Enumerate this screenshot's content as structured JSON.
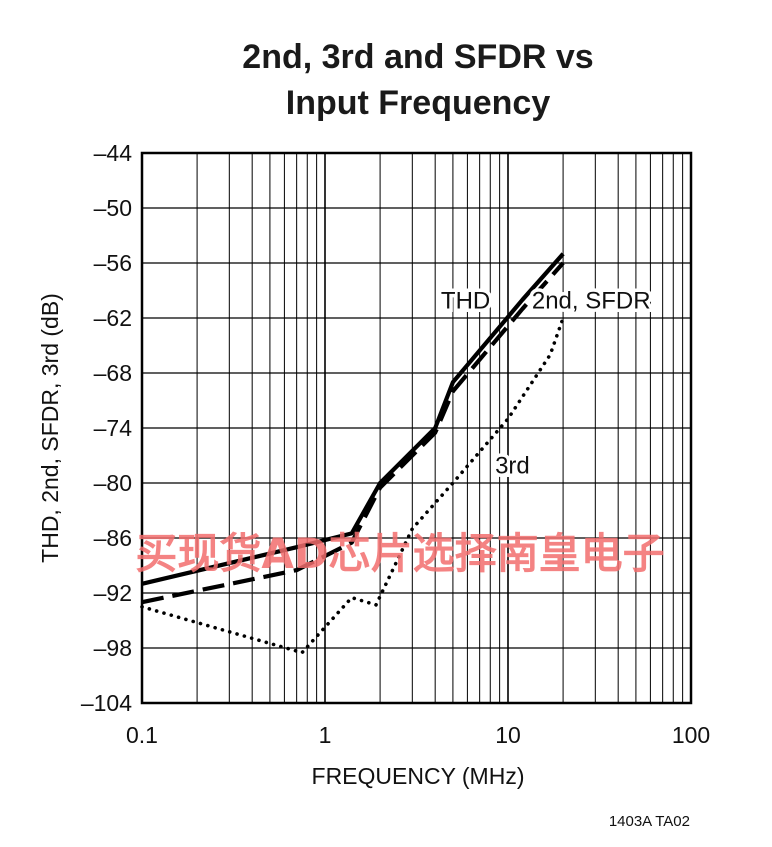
{
  "chart_data": {
    "type": "line",
    "title_lines": [
      "2nd, 3rd and SFDR vs",
      "Input Frequency"
    ],
    "xlabel": "FREQUENCY (MHz)",
    "ylabel": "THD, 2nd, SFDR, 3rd (dB)",
    "x_scale": "log",
    "xlim": [
      0.1,
      100
    ],
    "ylim": [
      -104,
      -44
    ],
    "x_ticks": [
      0.1,
      1,
      10,
      100
    ],
    "x_tick_labels": [
      "0.1",
      "1",
      "10",
      "100"
    ],
    "y_ticks": [
      -44,
      -50,
      -56,
      -62,
      -68,
      -74,
      -80,
      -86,
      -92,
      -98,
      -104
    ],
    "y_tick_labels": [
      "–44",
      "–50",
      "–56",
      "–62",
      "–68",
      "–74",
      "–80",
      "–86",
      "–92",
      "–98",
      "–104"
    ],
    "grid": true,
    "series": [
      {
        "name": "THD",
        "style": "solid",
        "x": [
          0.1,
          0.7,
          1.4,
          2,
          4,
          5,
          12,
          20
        ],
        "y": [
          -91,
          -87,
          -85.5,
          -80,
          -74,
          -69,
          -60,
          -55
        ]
      },
      {
        "name": "2nd, SFDR",
        "style": "dashed",
        "x": [
          0.1,
          0.7,
          1.4,
          2,
          4,
          5,
          12,
          20
        ],
        "y": [
          -93,
          -89.5,
          -86.5,
          -80.5,
          -74.5,
          -70,
          -61,
          -56
        ]
      },
      {
        "name": "3rd",
        "style": "dotted",
        "x": [
          0.1,
          0.75,
          1.4,
          1.9,
          3,
          5,
          10,
          17,
          20
        ],
        "y": [
          -93.5,
          -98.5,
          -92.5,
          -93.3,
          -85,
          -80,
          -73,
          -66,
          -62
        ]
      }
    ],
    "annotations": [
      {
        "text": "THD",
        "x": 4.3,
        "y": -60
      },
      {
        "text": "2nd, SFDR",
        "x": 13.5,
        "y": -60
      },
      {
        "text": "3rd",
        "x": 8.5,
        "y": -78
      }
    ]
  },
  "figure_id": "1403A TA02",
  "watermark": "买现货AD芯片选择南皇电子",
  "colors": {
    "lines": "#000000",
    "watermark": "#f26d6d"
  }
}
